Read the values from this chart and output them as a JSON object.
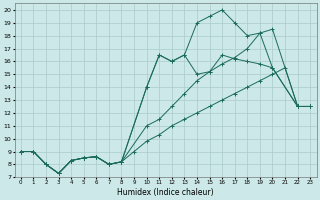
{
  "xlabel": "Humidex (Indice chaleur)",
  "xlim": [
    -0.5,
    23.5
  ],
  "ylim": [
    7,
    20.5
  ],
  "yticks": [
    7,
    8,
    9,
    10,
    11,
    12,
    13,
    14,
    15,
    16,
    17,
    18,
    19,
    20
  ],
  "xticks": [
    0,
    1,
    2,
    3,
    4,
    5,
    6,
    7,
    8,
    9,
    10,
    11,
    12,
    13,
    14,
    15,
    16,
    17,
    18,
    19,
    20,
    21,
    22,
    23
  ],
  "bg_color": "#cce8e8",
  "grid_color": "#aacccc",
  "line_color": "#1a6b5a",
  "lines": [
    {
      "x": [
        0,
        1,
        2,
        3,
        4,
        5,
        6,
        7,
        8,
        9,
        10,
        11,
        12,
        13,
        14,
        15,
        16,
        17,
        18,
        19,
        20,
        21,
        22,
        23
      ],
      "y": [
        9,
        9,
        8,
        7.3,
        8.3,
        8.5,
        8.6,
        8.0,
        8.2,
        9.0,
        9.8,
        10.3,
        11.0,
        11.5,
        12.0,
        12.5,
        13.0,
        13.5,
        14.0,
        14.5,
        15.0,
        15.5,
        12.5,
        12.5
      ]
    },
    {
      "x": [
        0,
        1,
        2,
        3,
        4,
        5,
        6,
        7,
        8,
        10,
        11,
        12,
        13,
        14,
        15,
        16,
        17,
        18,
        19,
        20,
        22,
        23
      ],
      "y": [
        9,
        9,
        8.0,
        7.3,
        8.3,
        8.5,
        8.6,
        8.0,
        8.2,
        11.0,
        11.5,
        12.5,
        13.5,
        14.5,
        15.2,
        15.8,
        16.3,
        17.0,
        18.2,
        18.5,
        12.5,
        12.5
      ]
    },
    {
      "x": [
        0,
        1,
        2,
        3,
        4,
        5,
        6,
        7,
        8,
        10,
        11,
        12,
        13,
        14,
        15,
        16,
        17,
        18,
        19,
        20,
        22,
        23
      ],
      "y": [
        9,
        9,
        8.0,
        7.3,
        8.3,
        8.5,
        8.6,
        8.0,
        8.2,
        14.0,
        16.5,
        16.0,
        16.5,
        15.0,
        15.2,
        16.5,
        16.2,
        16.0,
        15.8,
        15.5,
        12.5,
        12.5
      ]
    },
    {
      "x": [
        0,
        1,
        2,
        3,
        4,
        5,
        6,
        7,
        8,
        10,
        11,
        12,
        13,
        14,
        15,
        16,
        17,
        18,
        19,
        20,
        22,
        23
      ],
      "y": [
        9,
        9,
        8.0,
        7.3,
        8.3,
        8.5,
        8.6,
        8.0,
        8.2,
        14.0,
        16.5,
        16.0,
        16.5,
        19.0,
        19.5,
        20.0,
        19.0,
        18.0,
        18.2,
        15.5,
        12.5,
        12.5
      ]
    }
  ]
}
